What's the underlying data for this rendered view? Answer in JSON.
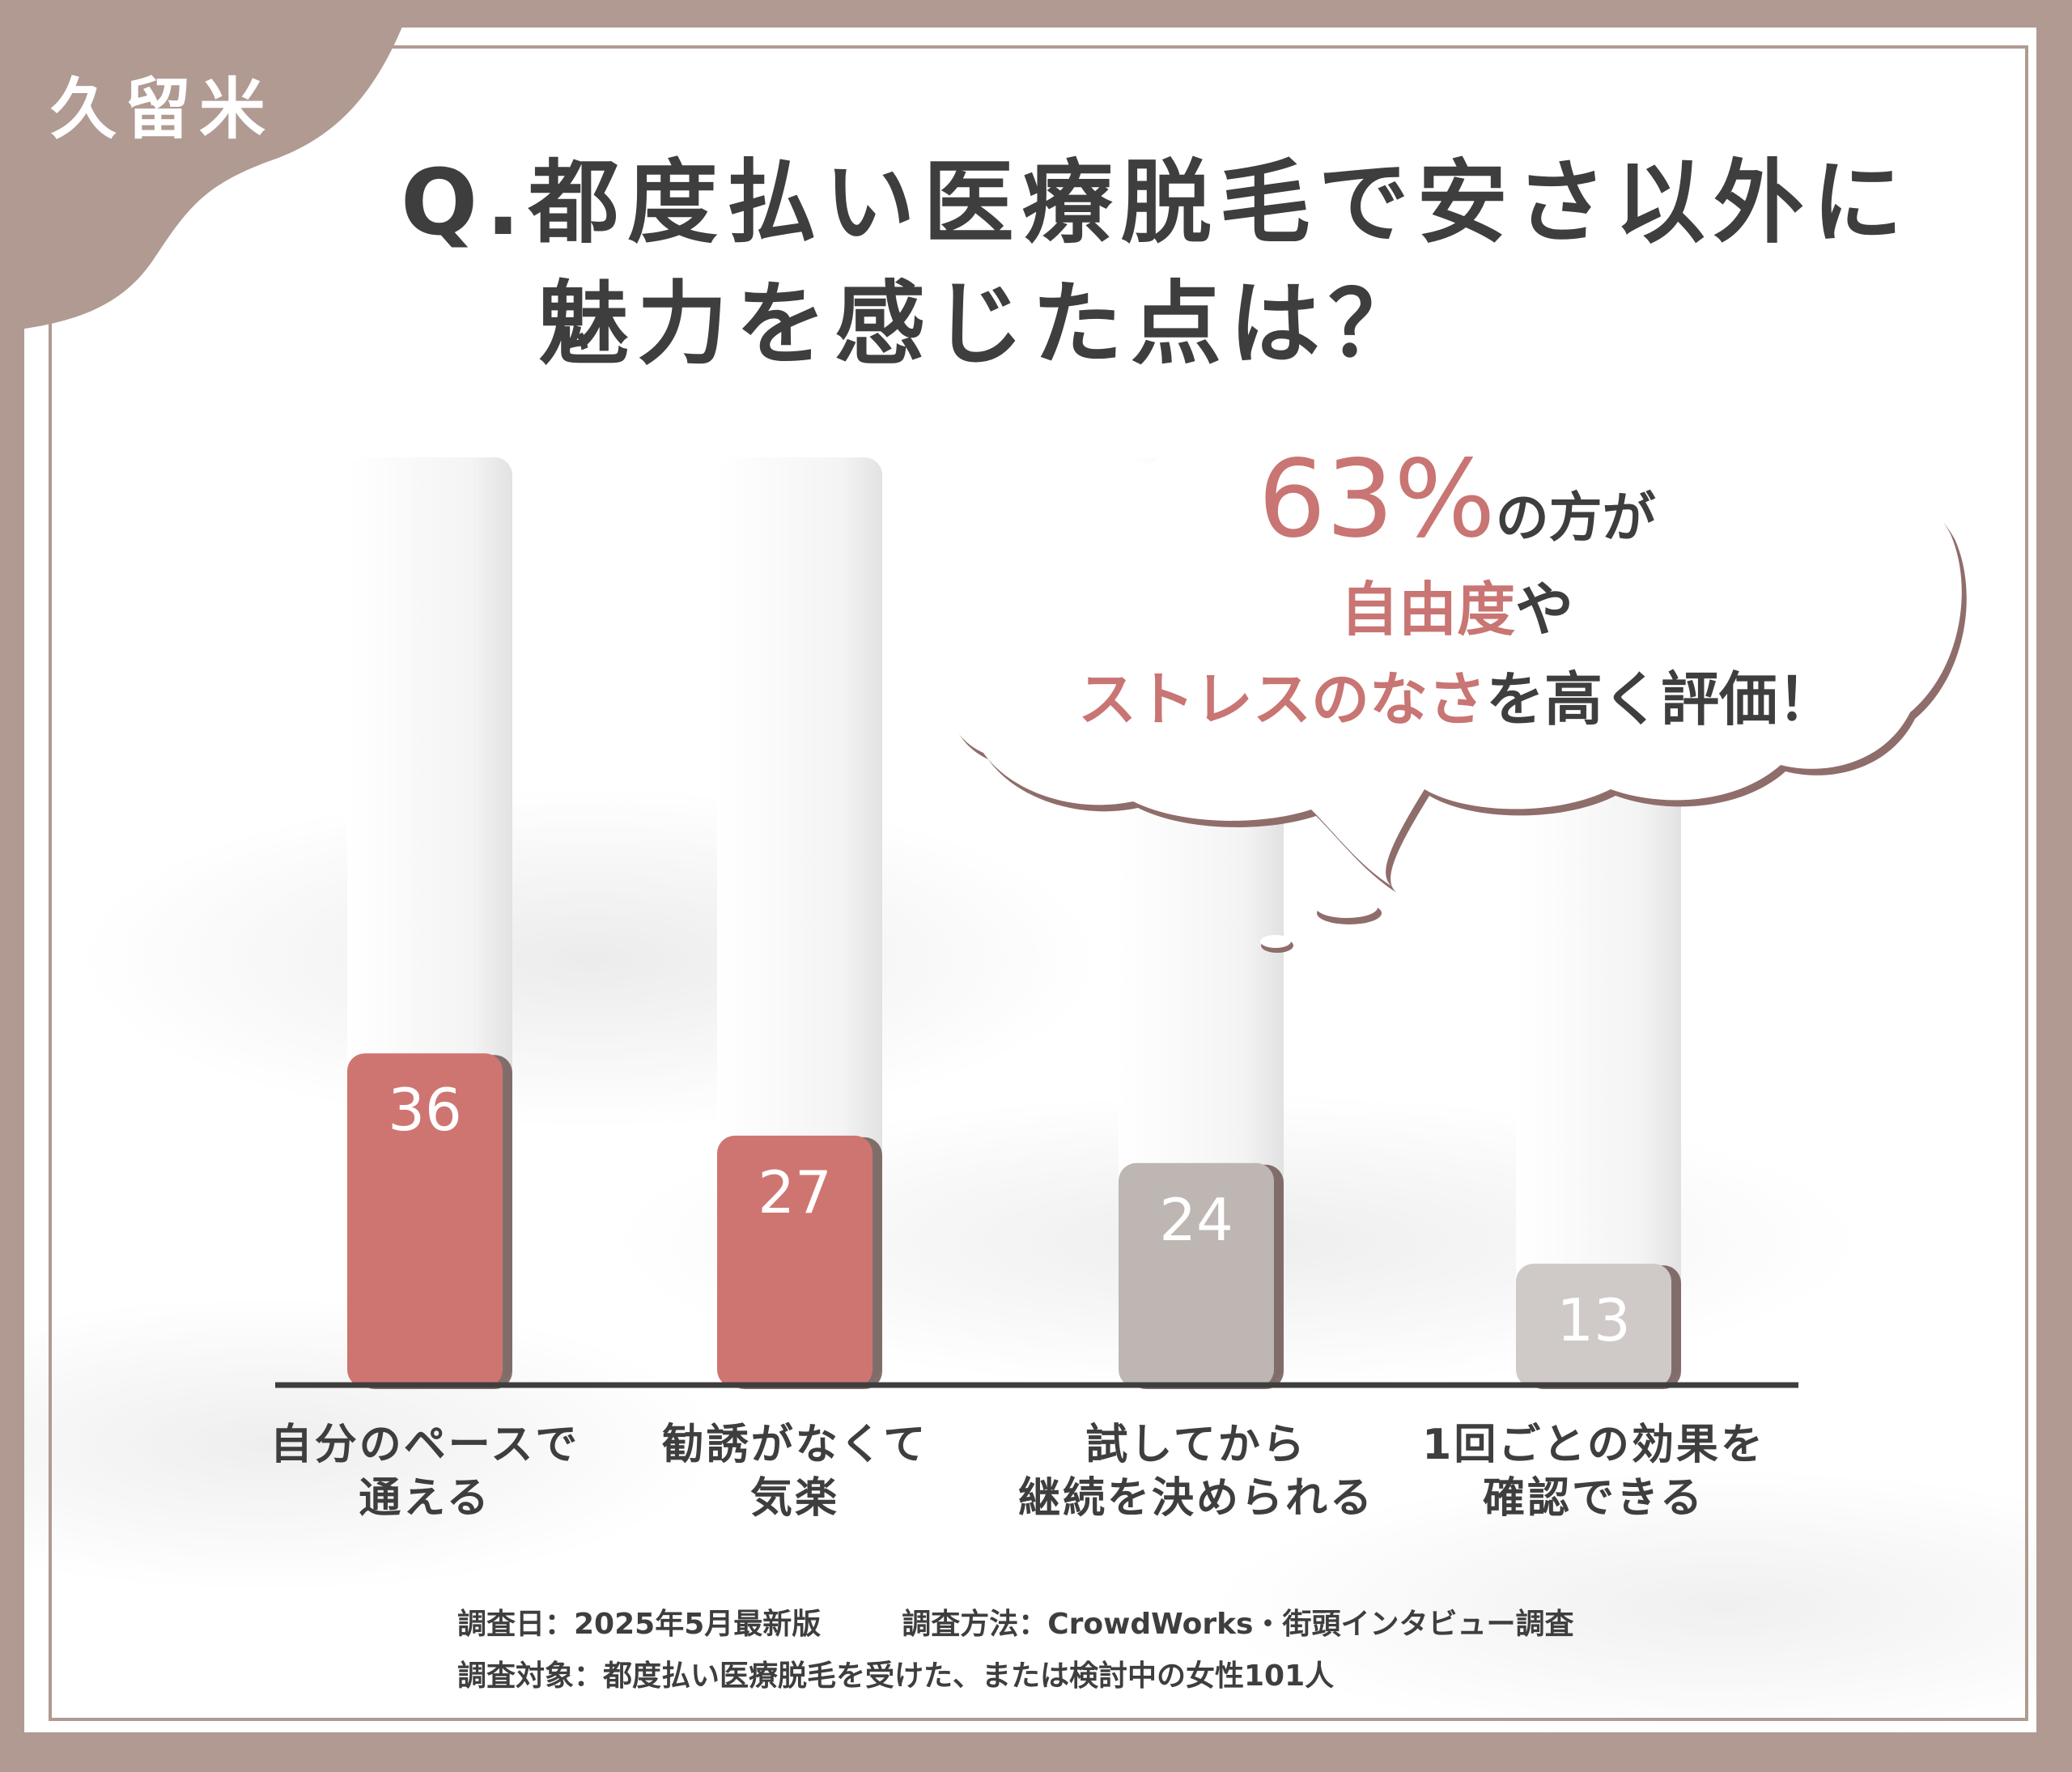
{
  "corner": {
    "label": "久留米"
  },
  "title": {
    "line1": "Q.都度払い医療脱毛で安さ以外に",
    "line2": "魅力を感じた点は？"
  },
  "callout": {
    "percent": "63%",
    "row1_suffix": "の方が",
    "row2_accent": "自由度",
    "row2_suffix": "や",
    "row3_accent": "ストレスのなさ",
    "row3_suffix": "を高く評価！"
  },
  "chart_data": {
    "type": "bar",
    "categories": [
      [
        "自分のペースで",
        "通える"
      ],
      [
        "勧誘がなくて",
        "気楽"
      ],
      [
        "試してから",
        "継続を決められる"
      ],
      [
        "1回ごとの効果を",
        "確認できる"
      ]
    ],
    "values": [
      36,
      27,
      24,
      13
    ],
    "colors": [
      "#cf7571",
      "#cf7571",
      "#bdb6b3",
      "#cfcac8"
    ],
    "ylim": [
      0,
      90
    ],
    "grid": false
  },
  "footer": {
    "date": "調査日：2025年5月最新版",
    "method": "調査方法：CrowdWorks・街頭インタビュー調査",
    "target": "調査対象：都度払い医療脱毛を受けた、または検討中の女性101人"
  },
  "colors": {
    "accent": "#c87573",
    "frame": "#b09a92",
    "text": "#3e3e3e"
  }
}
